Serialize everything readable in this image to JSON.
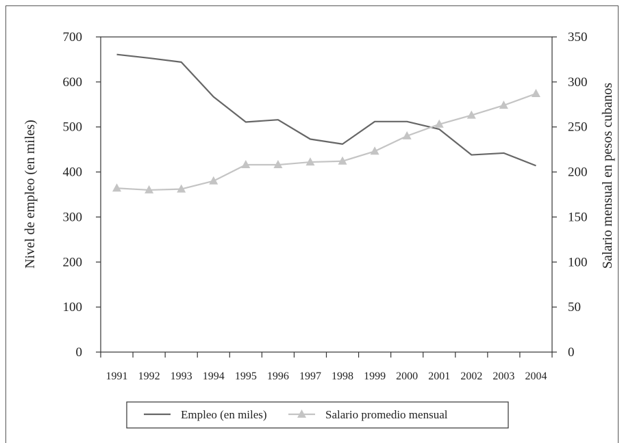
{
  "chart_data": {
    "type": "line",
    "categories": [
      "1991",
      "1992",
      "1993",
      "1994",
      "1995",
      "1996",
      "1997",
      "1998",
      "1999",
      "2000",
      "2001",
      "2002",
      "2003",
      "2004"
    ],
    "y_left": {
      "label": "Nivel de empleo (en miles)",
      "ylim": [
        0,
        700
      ],
      "ticks": [
        "0",
        "100",
        "200",
        "300",
        "400",
        "500",
        "600",
        "700"
      ]
    },
    "y_right": {
      "label": "Salario mensual en pesos cubanos",
      "ylim": [
        0,
        350
      ],
      "ticks": [
        "0",
        "50",
        "100",
        "150",
        "200",
        "250",
        "300",
        "350"
      ]
    },
    "series": [
      {
        "name": "Empleo (en miles)",
        "axis": "left",
        "color": "#666666",
        "marker": "none",
        "values": [
          661,
          653,
          644,
          567,
          511,
          516,
          473,
          462,
          512,
          512,
          495,
          438,
          442,
          414
        ]
      },
      {
        "name": "Salario promedio mensual",
        "axis": "right",
        "color": "#c4c4c4",
        "marker": "triangle",
        "values": [
          182,
          180,
          181,
          190,
          208,
          208,
          211,
          212,
          223,
          240,
          253,
          263,
          274,
          287
        ]
      }
    ],
    "grid": false,
    "legend_position": "bottom"
  }
}
